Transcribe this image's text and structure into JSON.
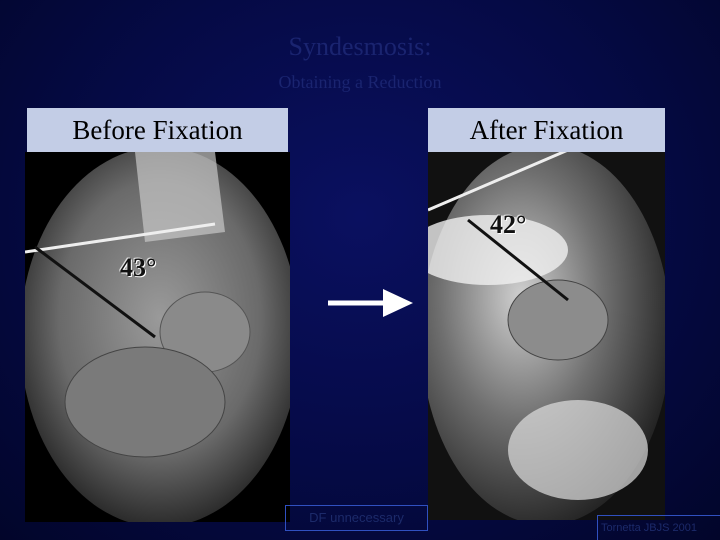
{
  "title": "Syndesmosis:",
  "subtitle": "Obtaining a Reduction",
  "panels": [
    {
      "label": "Before Fixation",
      "angle": "43°"
    },
    {
      "label": "After Fixation",
      "angle": "42°"
    }
  ],
  "note": "DF unnecessary",
  "citation": "Tornetta JBJS 2001"
}
